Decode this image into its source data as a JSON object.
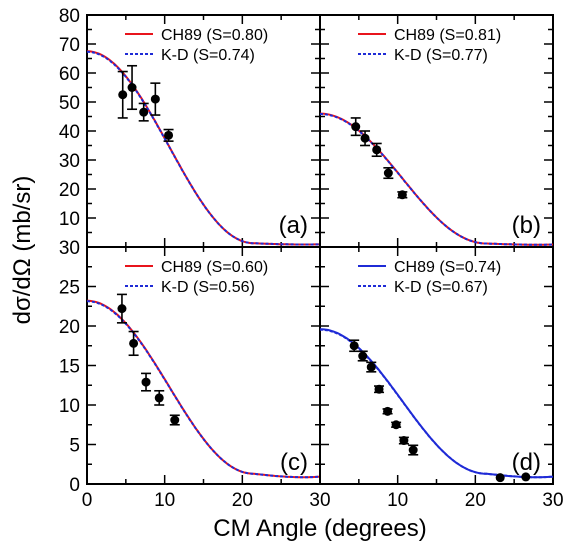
{
  "figure": {
    "xlabel": "CM Angle (degrees)",
    "ylabel": "dσ/dΩ (mb/sr)"
  },
  "chart_data": [
    {
      "type": "line",
      "panel_label": "(a)",
      "xlim": [
        0,
        30
      ],
      "ylim": [
        0,
        80
      ],
      "x_ticks": [],
      "y_ticks": [
        10,
        20,
        30,
        40,
        50,
        60,
        70,
        80
      ],
      "curve_peak": 67.5,
      "curve_floor": 1.3,
      "series": [
        {
          "name": "CH89 (S=0.80)",
          "color": "#e8141c",
          "style": "solid"
        },
        {
          "name": "K-D (S=0.74)",
          "color": "#1f2bd6",
          "style": "dotted"
        }
      ],
      "points": [
        {
          "x": 4.6,
          "y": 52.5,
          "err": 8
        },
        {
          "x": 5.8,
          "y": 55,
          "err": 7.5
        },
        {
          "x": 7.3,
          "y": 46.5,
          "err": 3
        },
        {
          "x": 8.8,
          "y": 51,
          "err": 5.5
        },
        {
          "x": 10.5,
          "y": 38.5,
          "err": 2
        }
      ]
    },
    {
      "type": "line",
      "panel_label": "(b)",
      "xlim": [
        0,
        30
      ],
      "ylim": [
        0,
        80
      ],
      "x_ticks": [],
      "y_ticks": [],
      "curve_peak": 46,
      "curve_floor": 1.2,
      "series": [
        {
          "name": "CH89 (S=0.81)",
          "color": "#e8141c",
          "style": "solid"
        },
        {
          "name": "K-D (S=0.77)",
          "color": "#1f2bd6",
          "style": "dotted"
        }
      ],
      "points": [
        {
          "x": 4.6,
          "y": 41.5,
          "err": 3
        },
        {
          "x": 5.8,
          "y": 37.5,
          "err": 2.5
        },
        {
          "x": 7.3,
          "y": 33.5,
          "err": 2.2
        },
        {
          "x": 8.8,
          "y": 25.5,
          "err": 1.8
        },
        {
          "x": 10.6,
          "y": 18,
          "err": 1
        }
      ]
    },
    {
      "type": "line",
      "panel_label": "(c)",
      "xlim": [
        0,
        30
      ],
      "ylim": [
        0,
        30
      ],
      "x_ticks": [
        0,
        10,
        20,
        30
      ],
      "y_ticks": [
        0,
        5,
        10,
        15,
        20,
        25,
        30
      ],
      "curve_peak": 23.2,
      "curve_floor": 1.3,
      "series": [
        {
          "name": "CH89 (S=0.60)",
          "color": "#e8141c",
          "style": "solid"
        },
        {
          "name": "K-D (S=0.56)",
          "color": "#1f2bd6",
          "style": "dotted"
        }
      ],
      "points": [
        {
          "x": 4.5,
          "y": 22.2,
          "err": 1.8
        },
        {
          "x": 6.0,
          "y": 17.8,
          "err": 1.5
        },
        {
          "x": 7.6,
          "y": 12.9,
          "err": 1.1
        },
        {
          "x": 9.3,
          "y": 10.9,
          "err": 0.9
        },
        {
          "x": 11.3,
          "y": 8.1,
          "err": 0.6
        }
      ]
    },
    {
      "type": "line",
      "panel_label": "(d)",
      "xlim": [
        0,
        30
      ],
      "ylim": [
        0,
        30
      ],
      "x_ticks": [
        10,
        20,
        30
      ],
      "y_ticks": [],
      "curve_peak": 19.6,
      "curve_floor": 1.3,
      "series": [
        {
          "name": "CH89 (S=0.74)",
          "color": "#1f2bd6",
          "style": "solid"
        },
        {
          "name": "K-D (S=0.67)",
          "color": "#1f2bd6",
          "style": "dotted"
        }
      ],
      "points": [
        {
          "x": 4.4,
          "y": 17.5,
          "err": 0.7
        },
        {
          "x": 5.5,
          "y": 16.2,
          "err": 0.6
        },
        {
          "x": 6.6,
          "y": 14.8,
          "err": 0.6
        },
        {
          "x": 7.6,
          "y": 12.0,
          "err": 0.4
        },
        {
          "x": 8.7,
          "y": 9.2,
          "err": 0.3
        },
        {
          "x": 9.8,
          "y": 7.5,
          "err": 0.3
        },
        {
          "x": 10.8,
          "y": 5.5,
          "err": 0.4
        },
        {
          "x": 12.0,
          "y": 4.3,
          "err": 0.6
        },
        {
          "x": 23.2,
          "y": 0.8,
          "err": 0
        },
        {
          "x": 26.5,
          "y": 0.9,
          "err": 0
        }
      ]
    }
  ]
}
